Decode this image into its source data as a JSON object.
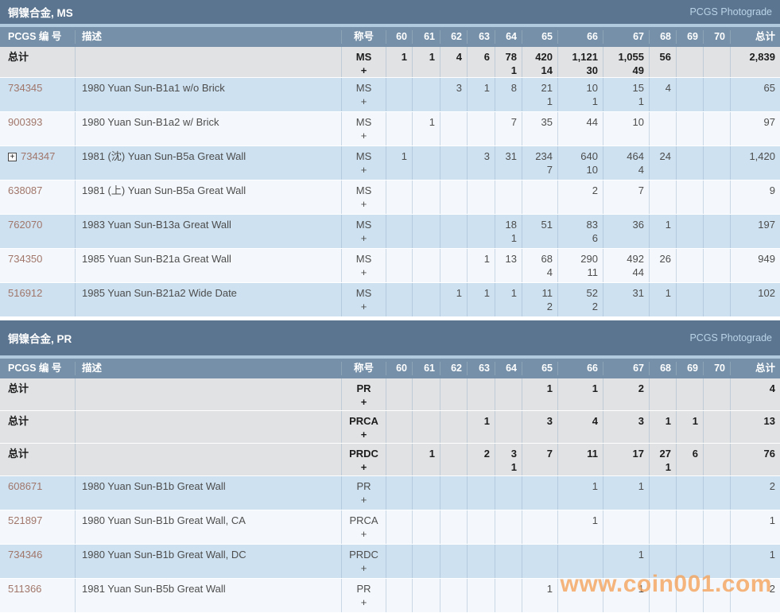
{
  "colors": {
    "titlebar": "#5b7590",
    "header": "#7590a8",
    "gray": "#e1e2e4",
    "blue": "#cde1f0",
    "white": "#f4f8fc",
    "link": "#a1766a"
  },
  "watermark": "www.coin001.com",
  "tables": [
    {
      "title": "铜镍合金, MS",
      "photograde": "PCGS Photograde",
      "columns": [
        "PCGS 编 号",
        "描述",
        "称号",
        "60",
        "61",
        "62",
        "63",
        "64",
        "65",
        "66",
        "67",
        "68",
        "69",
        "70",
        "总计"
      ],
      "rows": [
        {
          "kind": "total",
          "label": "总计",
          "desc": "",
          "desig": "MS",
          "plus": "+",
          "g": [
            [
              "1",
              ""
            ],
            [
              "1",
              ""
            ],
            [
              "4",
              ""
            ],
            [
              "6",
              ""
            ],
            [
              "78",
              "1"
            ],
            [
              "420",
              "14"
            ],
            [
              "1,121",
              "30"
            ],
            [
              "1,055",
              "49"
            ],
            [
              "56",
              ""
            ],
            [
              "",
              ""
            ],
            [
              "",
              ""
            ]
          ],
          "total": "2,839"
        },
        {
          "kind": "link",
          "label": "734345",
          "expand": false,
          "desc": "1980 Yuan Sun-B1a1 w/o Brick",
          "desig": "MS",
          "plus": "+",
          "g": [
            [
              "",
              ""
            ],
            [
              "",
              ""
            ],
            [
              "3",
              ""
            ],
            [
              "1",
              ""
            ],
            [
              "8",
              ""
            ],
            [
              "21",
              "1"
            ],
            [
              "10",
              "1"
            ],
            [
              "15",
              "1"
            ],
            [
              "4",
              ""
            ],
            [
              "",
              ""
            ],
            [
              "",
              ""
            ]
          ],
          "total": "65"
        },
        {
          "kind": "link",
          "label": "900393",
          "expand": false,
          "desc": "1980 Yuan Sun-B1a2 w/ Brick",
          "desig": "MS",
          "plus": "+",
          "g": [
            [
              "",
              ""
            ],
            [
              "1",
              ""
            ],
            [
              "",
              ""
            ],
            [
              "",
              ""
            ],
            [
              "7",
              ""
            ],
            [
              "35",
              ""
            ],
            [
              "44",
              ""
            ],
            [
              "10",
              ""
            ],
            [
              "",
              ""
            ],
            [
              "",
              ""
            ],
            [
              "",
              ""
            ]
          ],
          "total": "97"
        },
        {
          "kind": "link",
          "label": "734347",
          "expand": true,
          "desc": "1981 (沈) Yuan Sun-B5a Great Wall",
          "desig": "MS",
          "plus": "+",
          "g": [
            [
              "1",
              ""
            ],
            [
              "",
              ""
            ],
            [
              "",
              ""
            ],
            [
              "3",
              ""
            ],
            [
              "31",
              ""
            ],
            [
              "234",
              "7"
            ],
            [
              "640",
              "10"
            ],
            [
              "464",
              "4"
            ],
            [
              "24",
              ""
            ],
            [
              "",
              ""
            ],
            [
              "",
              ""
            ]
          ],
          "total": "1,420"
        },
        {
          "kind": "link",
          "label": "638087",
          "expand": false,
          "desc": "1981 (上) Yuan Sun-B5a Great Wall",
          "desig": "MS",
          "plus": "+",
          "g": [
            [
              "",
              ""
            ],
            [
              "",
              ""
            ],
            [
              "",
              ""
            ],
            [
              "",
              ""
            ],
            [
              "",
              ""
            ],
            [
              "",
              ""
            ],
            [
              "2",
              ""
            ],
            [
              "7",
              ""
            ],
            [
              "",
              ""
            ],
            [
              "",
              ""
            ],
            [
              "",
              ""
            ]
          ],
          "total": "9"
        },
        {
          "kind": "link",
          "label": "762070",
          "expand": false,
          "desc": "1983 Yuan Sun-B13a Great Wall",
          "desig": "MS",
          "plus": "+",
          "g": [
            [
              "",
              ""
            ],
            [
              "",
              ""
            ],
            [
              "",
              ""
            ],
            [
              "",
              ""
            ],
            [
              "18",
              "1"
            ],
            [
              "51",
              ""
            ],
            [
              "83",
              "6"
            ],
            [
              "36",
              ""
            ],
            [
              "1",
              ""
            ],
            [
              "",
              ""
            ],
            [
              "",
              ""
            ]
          ],
          "total": "197"
        },
        {
          "kind": "link",
          "label": "734350",
          "expand": false,
          "desc": "1985 Yuan Sun-B21a Great Wall",
          "desig": "MS",
          "plus": "+",
          "g": [
            [
              "",
              ""
            ],
            [
              "",
              ""
            ],
            [
              "",
              ""
            ],
            [
              "1",
              ""
            ],
            [
              "13",
              ""
            ],
            [
              "68",
              "4"
            ],
            [
              "290",
              "11"
            ],
            [
              "492",
              "44"
            ],
            [
              "26",
              ""
            ],
            [
              "",
              ""
            ],
            [
              "",
              ""
            ]
          ],
          "total": "949"
        },
        {
          "kind": "link",
          "label": "516912",
          "expand": false,
          "desc": "1985 Yuan Sun-B21a2 Wide Date",
          "desig": "MS",
          "plus": "+",
          "g": [
            [
              "",
              ""
            ],
            [
              "",
              ""
            ],
            [
              "1",
              ""
            ],
            [
              "1",
              ""
            ],
            [
              "1",
              ""
            ],
            [
              "11",
              "2"
            ],
            [
              "52",
              "2"
            ],
            [
              "31",
              ""
            ],
            [
              "1",
              ""
            ],
            [
              "",
              ""
            ],
            [
              "",
              ""
            ]
          ],
          "total": "102"
        }
      ]
    },
    {
      "title": "铜镍合金, PR",
      "photograde": "PCGS Photograde",
      "columns": [
        "PCGS 编 号",
        "描述",
        "称号",
        "60",
        "61",
        "62",
        "63",
        "64",
        "65",
        "66",
        "67",
        "68",
        "69",
        "70",
        "总计"
      ],
      "rows": [
        {
          "kind": "total",
          "label": "总计",
          "desc": "",
          "desig": "PR",
          "plus": "+",
          "g": [
            [
              "",
              ""
            ],
            [
              "",
              ""
            ],
            [
              "",
              ""
            ],
            [
              "",
              ""
            ],
            [
              "",
              ""
            ],
            [
              "1",
              ""
            ],
            [
              "1",
              ""
            ],
            [
              "2",
              ""
            ],
            [
              "",
              ""
            ],
            [
              "",
              ""
            ],
            [
              "",
              ""
            ]
          ],
          "total": "4"
        },
        {
          "kind": "total",
          "label": "总计",
          "desc": "",
          "desig": "PRCA",
          "plus": "+",
          "g": [
            [
              "",
              ""
            ],
            [
              "",
              ""
            ],
            [
              "",
              ""
            ],
            [
              "1",
              ""
            ],
            [
              "",
              ""
            ],
            [
              "3",
              ""
            ],
            [
              "4",
              ""
            ],
            [
              "3",
              ""
            ],
            [
              "1",
              ""
            ],
            [
              "1",
              ""
            ],
            [
              "",
              ""
            ]
          ],
          "total": "13"
        },
        {
          "kind": "total",
          "label": "总计",
          "desc": "",
          "desig": "PRDC",
          "plus": "+",
          "g": [
            [
              "",
              ""
            ],
            [
              "1",
              ""
            ],
            [
              "",
              ""
            ],
            [
              "2",
              ""
            ],
            [
              "3",
              "1"
            ],
            [
              "7",
              ""
            ],
            [
              "11",
              ""
            ],
            [
              "17",
              ""
            ],
            [
              "27",
              "1"
            ],
            [
              "6",
              ""
            ],
            [
              "",
              ""
            ]
          ],
          "total": "76"
        },
        {
          "kind": "link",
          "label": "608671",
          "expand": false,
          "desc": "1980 Yuan Sun-B1b Great Wall",
          "desig": "PR",
          "plus": "+",
          "g": [
            [
              "",
              ""
            ],
            [
              "",
              ""
            ],
            [
              "",
              ""
            ],
            [
              "",
              ""
            ],
            [
              "",
              ""
            ],
            [
              "",
              ""
            ],
            [
              "1",
              ""
            ],
            [
              "1",
              ""
            ],
            [
              "",
              ""
            ],
            [
              "",
              ""
            ],
            [
              "",
              ""
            ]
          ],
          "total": "2"
        },
        {
          "kind": "link",
          "label": "521897",
          "expand": false,
          "desc": "1980 Yuan Sun-B1b Great Wall, CA",
          "desig": "PRCA",
          "plus": "+",
          "g": [
            [
              "",
              ""
            ],
            [
              "",
              ""
            ],
            [
              "",
              ""
            ],
            [
              "",
              ""
            ],
            [
              "",
              ""
            ],
            [
              "",
              ""
            ],
            [
              "1",
              ""
            ],
            [
              "",
              ""
            ],
            [
              "",
              ""
            ],
            [
              "",
              ""
            ],
            [
              "",
              ""
            ]
          ],
          "total": "1"
        },
        {
          "kind": "link",
          "label": "734346",
          "expand": false,
          "desc": "1980 Yuan Sun-B1b Great Wall, DC",
          "desig": "PRDC",
          "plus": "+",
          "g": [
            [
              "",
              ""
            ],
            [
              "",
              ""
            ],
            [
              "",
              ""
            ],
            [
              "",
              ""
            ],
            [
              "",
              ""
            ],
            [
              "",
              ""
            ],
            [
              "",
              ""
            ],
            [
              "1",
              ""
            ],
            [
              "",
              ""
            ],
            [
              "",
              ""
            ],
            [
              "",
              ""
            ]
          ],
          "total": "1"
        },
        {
          "kind": "link",
          "label": "511366",
          "expand": false,
          "desc": "1981 Yuan Sun-B5b Great Wall",
          "desig": "PR",
          "plus": "+",
          "g": [
            [
              "",
              ""
            ],
            [
              "",
              ""
            ],
            [
              "",
              ""
            ],
            [
              "",
              ""
            ],
            [
              "",
              ""
            ],
            [
              "1",
              ""
            ],
            [
              "",
              ""
            ],
            [
              "1",
              ""
            ],
            [
              "",
              ""
            ],
            [
              "",
              ""
            ],
            [
              "",
              ""
            ]
          ],
          "total": "2"
        }
      ]
    }
  ]
}
